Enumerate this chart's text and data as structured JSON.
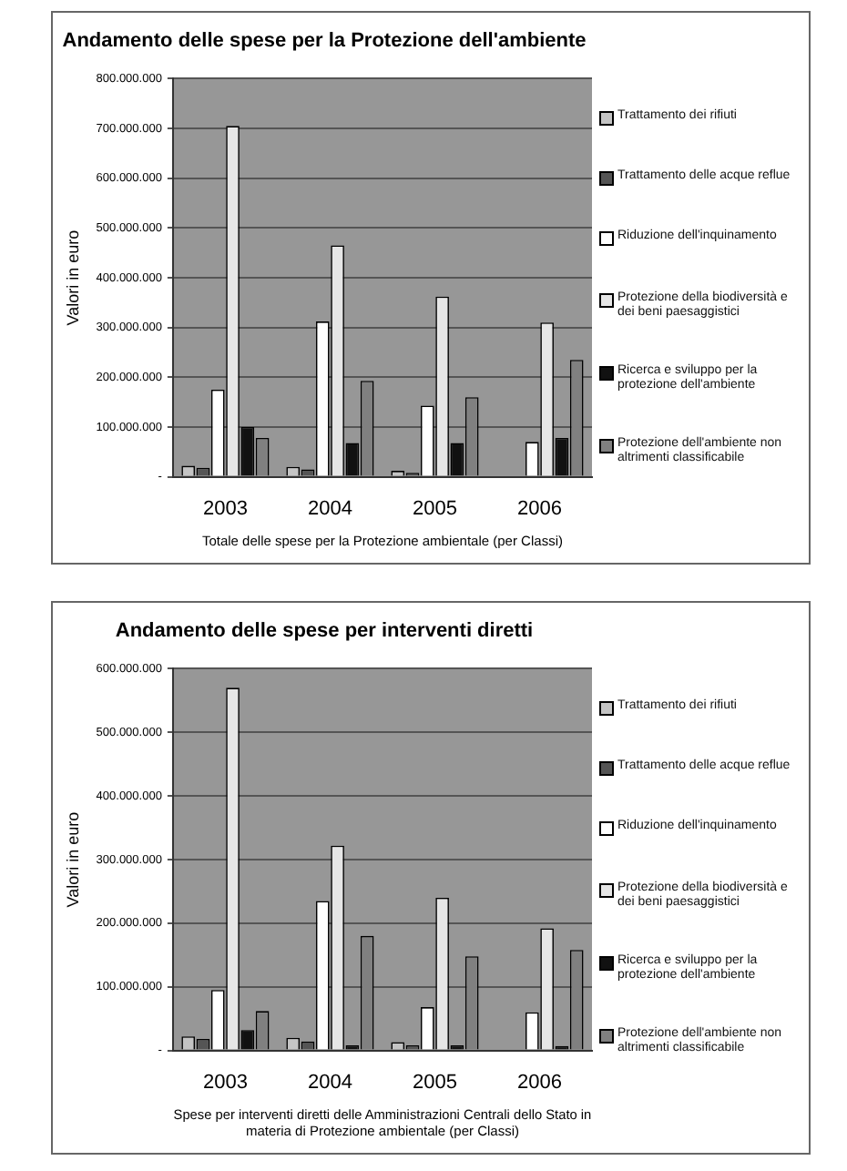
{
  "chart_data": [
    {
      "type": "bar",
      "title": "Andamento delle spese per la Protezione dell'ambiente",
      "xlabel": "Totale delle spese per la Protezione ambientale (per Classi)",
      "ylabel": "Valori in euro",
      "categories": [
        "2003",
        "2004",
        "2005",
        "2006"
      ],
      "series": [
        {
          "name": "Trattamento dei rifiuti",
          "color": "#c4c4c4",
          "values": [
            22000000,
            20000000,
            12000000,
            null
          ]
        },
        {
          "name": "Trattamento delle acque reflue",
          "color": "#555555",
          "values": [
            18000000,
            15000000,
            8000000,
            null
          ]
        },
        {
          "name": "Riduzione dell'inquinamento",
          "color": "#ffffff",
          "values": [
            175000000,
            312000000,
            143000000,
            70000000
          ]
        },
        {
          "name": "Protezione della biodiversità e dei beni paesaggistici",
          "color": "#e6e6e6",
          "values": [
            705000000,
            465000000,
            362000000,
            310000000
          ]
        },
        {
          "name": "Ricerca e sviluppo per la protezione dell'ambiente",
          "color": "#111111",
          "values": [
            100000000,
            68000000,
            68000000,
            78000000
          ]
        },
        {
          "name": "Protezione dell'ambiente non altrimenti classificabile",
          "color": "#808080",
          "values": [
            78000000,
            193000000,
            160000000,
            235000000
          ]
        }
      ],
      "ylim": [
        0,
        800000000
      ],
      "yticks": [
        {
          "value": 0,
          "label": "-"
        },
        {
          "value": 100000000,
          "label": "100.000.000"
        },
        {
          "value": 200000000,
          "label": "200.000.000"
        },
        {
          "value": 300000000,
          "label": "300.000.000"
        },
        {
          "value": 400000000,
          "label": "400.000.000"
        },
        {
          "value": 500000000,
          "label": "500.000.000"
        },
        {
          "value": 600000000,
          "label": "600.000.000"
        },
        {
          "value": 700000000,
          "label": "700.000.000"
        },
        {
          "value": 800000000,
          "label": "800.000.000"
        }
      ],
      "grid": "y",
      "legend": "right"
    },
    {
      "type": "bar",
      "title": "Andamento delle spese per interventi diretti",
      "xlabel": "Spese per interventi diretti delle Amministrazioni Centrali dello Stato in materia di Protezione ambientale (per Classi)",
      "ylabel": "Valori in euro",
      "categories": [
        "2003",
        "2004",
        "2005",
        "2006"
      ],
      "series": [
        {
          "name": "Trattamento dei rifiuti",
          "color": "#c4c4c4",
          "values": [
            22000000,
            20000000,
            13000000,
            null
          ]
        },
        {
          "name": "Trattamento delle acque reflue",
          "color": "#555555",
          "values": [
            18000000,
            14000000,
            8000000,
            null
          ]
        },
        {
          "name": "Riduzione dell'inquinamento",
          "color": "#ffffff",
          "values": [
            95000000,
            235000000,
            68000000,
            60000000
          ]
        },
        {
          "name": "Protezione della biodiversità e dei beni paesaggistici",
          "color": "#e6e6e6",
          "values": [
            570000000,
            322000000,
            240000000,
            192000000
          ]
        },
        {
          "name": "Ricerca e sviluppo per la protezione dell'ambiente",
          "color": "#111111",
          "values": [
            32000000,
            8000000,
            8000000,
            7000000
          ]
        },
        {
          "name": "Protezione dell'ambiente non altrimenti classificabile",
          "color": "#808080",
          "values": [
            62000000,
            180000000,
            148000000,
            158000000
          ]
        }
      ],
      "ylim": [
        0,
        600000000
      ],
      "yticks": [
        {
          "value": 0,
          "label": "-"
        },
        {
          "value": 100000000,
          "label": "100.000.000"
        },
        {
          "value": 200000000,
          "label": "200.000.000"
        },
        {
          "value": 300000000,
          "label": "300.000.000"
        },
        {
          "value": 400000000,
          "label": "400.000.000"
        },
        {
          "value": 500000000,
          "label": "500.000.000"
        },
        {
          "value": 600000000,
          "label": "600.000.000"
        }
      ],
      "grid": "y",
      "legend": "right"
    }
  ]
}
